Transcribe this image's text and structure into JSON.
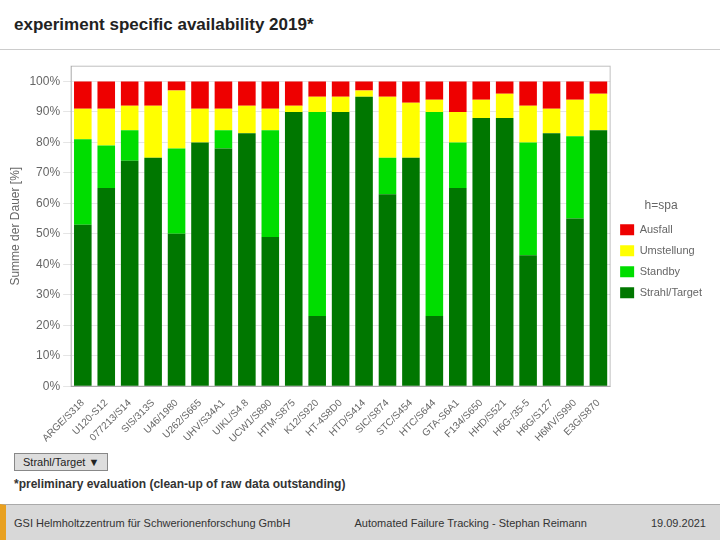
{
  "chart_data": {
    "type": "bar",
    "stacked": true,
    "title": "experiment specific availability 2019*",
    "subtitle": "*preliminary evaluation (clean-up of raw data outstanding)",
    "y_label": "Summe der Dauer [%]",
    "legend_title": "h=spa",
    "annotations": [
      "Strahl/Target  ▼"
    ],
    "footer": [
      "GSI Helmholtzzentrum für Schwerionenforschung GmbH",
      "Automated Failure Tracking - Stephan Reimann",
      "19.09.2021"
    ],
    "categories": [
      "ARGE/S318",
      "U120-S12",
      "077213/S14",
      "SIS/313S",
      "U46/1980",
      "U262/S665",
      "UHV/S34A1",
      "UIKL/S4.8",
      "UCW1/S890",
      "HTM-S875",
      "K12/S920",
      "HT-4S8D0",
      "HTD/S414",
      "SIC/S874",
      "STC/S454",
      "HTC/S644",
      "GTA-S6A1",
      "F134/S650",
      "HHD/S521",
      "H6G-/35-5",
      "H6G/S127",
      "H6MV/S990",
      "E3G/S870"
    ],
    "series": [
      {
        "name": "Strahl/Target",
        "color": "#007700",
        "values": [
          53,
          65,
          74,
          75,
          50,
          80,
          78,
          83,
          49,
          90,
          23,
          90,
          95,
          63,
          75,
          23,
          65,
          88,
          88,
          43,
          83,
          55,
          84
        ]
      },
      {
        "name": "Standby",
        "color": "#00DD00",
        "values": [
          28,
          14,
          10,
          0,
          28,
          0,
          6,
          0,
          35,
          0,
          67,
          0,
          0,
          12,
          0,
          67,
          15,
          0,
          0,
          37,
          0,
          27,
          0
        ]
      },
      {
        "name": "Umstellung",
        "color": "#FFFF00",
        "values": [
          10,
          12,
          8,
          17,
          19,
          11,
          7,
          9,
          7,
          2,
          5,
          5,
          2,
          20,
          18,
          4,
          10,
          6,
          8,
          12,
          8,
          12,
          12
        ]
      },
      {
        "name": "Ausfall",
        "color": "#EE0000",
        "values": [
          9,
          9,
          8,
          8,
          3,
          9,
          9,
          8,
          9,
          8,
          5,
          5,
          3,
          5,
          7,
          6,
          10,
          6,
          4,
          8,
          9,
          6,
          4
        ]
      }
    ],
    "ylim": [
      0,
      105
    ],
    "yticks": [
      {
        "value": 0,
        "label": "0%"
      },
      {
        "value": 10,
        "label": "10%"
      },
      {
        "value": 20,
        "label": "20%"
      },
      {
        "value": 30,
        "label": "30%"
      },
      {
        "value": 40,
        "label": "40%"
      },
      {
        "value": 50,
        "label": "50%"
      },
      {
        "value": 60,
        "label": "60%"
      },
      {
        "value": 70,
        "label": "70%"
      },
      {
        "value": 80,
        "label": "80%"
      },
      {
        "value": 90,
        "label": "90%"
      },
      {
        "value": 100,
        "label": "100%"
      }
    ],
    "grid": true,
    "legend": "right"
  }
}
